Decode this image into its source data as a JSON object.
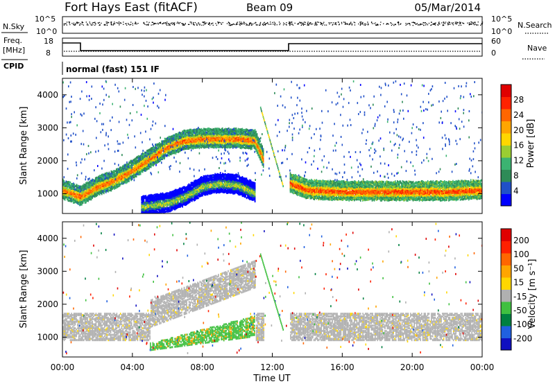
{
  "header": {
    "station": "Fort Hays East (fitACF)",
    "beam": "Beam 09",
    "date": "05/Mar/2014"
  },
  "top_panels": {
    "nsky_label": "N.Sky",
    "nsky_ticks": [
      "10^5",
      "10^0"
    ],
    "nsearch_label": "N.Search",
    "nsearch_ticks": [
      "10^5",
      "10^0"
    ],
    "freq_label": "Freq.",
    "freq_unit": "[MHz]",
    "freq_ticks": [
      "18",
      "8"
    ],
    "nave_label": "Nave",
    "nave_ticks": [
      "60",
      "0"
    ],
    "cpid_label": "CPID",
    "cpid_value": "normal (fast) 151 IF"
  },
  "colors": {
    "power": [
      "#0000ff",
      "#2050c8",
      "#2e8b57",
      "#3cb371",
      "#9acd32",
      "#ffd700",
      "#ffa500",
      "#ff6600",
      "#ff2200",
      "#e00000"
    ],
    "velocity": [
      "#1010c0",
      "#2060e0",
      "#008040",
      "#40c040",
      "#b0b0b0",
      "#ffd700",
      "#ffa500",
      "#ff6600",
      "#ff2000",
      "#e00000"
    ]
  },
  "chart_data": [
    {
      "type": "heatmap",
      "ylabel": "Slant Range [km]",
      "yticks": [
        "1000",
        "2000",
        "3000",
        "4000"
      ],
      "ylim": [
        400,
        4500
      ],
      "colorbar_label": "Power [dB]",
      "colorbar_ticks": [
        "28",
        "24",
        "20",
        "16",
        "12",
        "8",
        "4"
      ],
      "color_range": [
        0,
        32
      ],
      "features": [
        {
          "hours": [
            0,
            1,
            2,
            3,
            4,
            5,
            6,
            7,
            8,
            9,
            10,
            11,
            11.5
          ],
          "range_km": [
            1100,
            900,
            1200,
            1400,
            1700,
            2050,
            2400,
            2600,
            2650,
            2650,
            2650,
            2600,
            2000
          ],
          "level_db": 24
        },
        {
          "hours": [
            13,
            14,
            16,
            18,
            20,
            22,
            24
          ],
          "range_km": [
            1300,
            1100,
            1050,
            1050,
            1050,
            1050,
            1100
          ],
          "level_db": 26
        },
        {
          "hours": [
            4.5,
            6,
            7,
            8,
            9,
            10,
            11
          ],
          "range_km": [
            600,
            700,
            900,
            1200,
            1300,
            1250,
            1000
          ],
          "level_db": 14
        }
      ]
    },
    {
      "type": "heatmap",
      "ylabel": "Slant Range [km]",
      "yticks": [
        "1000",
        "2000",
        "3000",
        "4000"
      ],
      "ylim": [
        400,
        4500
      ],
      "xlabel": "Time UT",
      "xticks": [
        "00:00",
        "04:00",
        "08:00",
        "12:00",
        "16:00",
        "20:00",
        "00:00"
      ],
      "colorbar_label": "Velocity [m s⁻¹]",
      "colorbar_ticks": [
        "200",
        "100",
        "50",
        "15",
        "-15",
        "-50",
        "-100",
        "-200"
      ],
      "features": [
        {
          "hours": [
            0,
            24
          ],
          "range_km": [
            1000,
            1800
          ],
          "velocity": 0
        },
        {
          "hours": [
            5,
            11
          ],
          "range_km": [
            600,
            1300
          ],
          "velocity": 40
        }
      ]
    }
  ]
}
